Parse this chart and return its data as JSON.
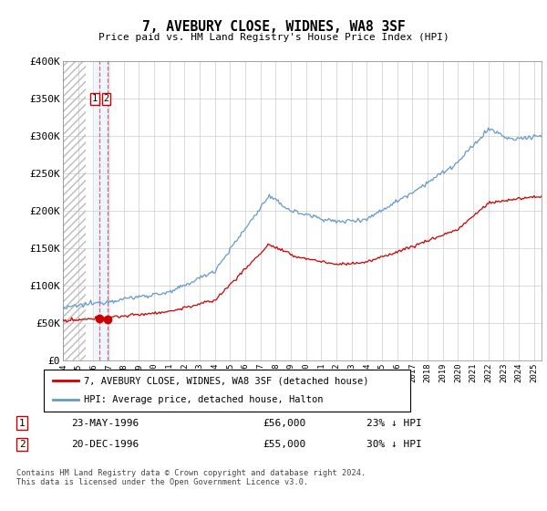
{
  "title": "7, AVEBURY CLOSE, WIDNES, WA8 3SF",
  "subtitle": "Price paid vs. HM Land Registry's House Price Index (HPI)",
  "ylabel_max": 400000,
  "yticks": [
    0,
    50000,
    100000,
    150000,
    200000,
    250000,
    300000,
    350000,
    400000
  ],
  "ytick_labels": [
    "£0",
    "£50K",
    "£100K",
    "£150K",
    "£200K",
    "£250K",
    "£300K",
    "£350K",
    "£400K"
  ],
  "xmin": 1994.0,
  "xmax": 2025.5,
  "hpi_color": "#6699cc",
  "price_color": "#cc0000",
  "sale1_x": 1996.38,
  "sale1_y": 56000,
  "sale1_label": "23-MAY-1996",
  "sale1_price": "£56,000",
  "sale1_hpi": "23% ↓ HPI",
  "sale2_x": 1996.96,
  "sale2_y": 55000,
  "sale2_label": "20-DEC-1996",
  "sale2_price": "£55,000",
  "sale2_hpi": "30% ↓ HPI",
  "legend_label1": "7, AVEBURY CLOSE, WIDNES, WA8 3SF (detached house)",
  "legend_label2": "HPI: Average price, detached house, Halton",
  "footnote": "Contains HM Land Registry data © Crown copyright and database right 2024.\nThis data is licensed under the Open Government Licence v3.0.",
  "hatch_end_x": 1995.5,
  "highlight_x1": 1996.1,
  "highlight_x2": 1997.2
}
